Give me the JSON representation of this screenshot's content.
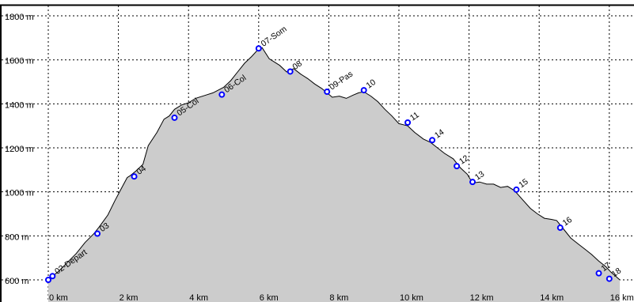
{
  "chart_data": {
    "type": "area",
    "title": "",
    "xlabel": "",
    "ylabel": "",
    "xlim": [
      0,
      16
    ],
    "ylim": [
      600,
      1800
    ],
    "grid": true,
    "grid_style": "dotted",
    "colors": {
      "fill": "#cccccc",
      "line": "#000000",
      "waypoint": "#0000ff",
      "grid": "#000000"
    },
    "x_ticks": [
      "0 km",
      "2 km",
      "4 km",
      "6 km",
      "8 km",
      "10 km",
      "12 km",
      "14 km",
      "16 km"
    ],
    "x_tick_values": [
      0,
      2,
      4,
      6,
      8,
      10,
      12,
      14,
      16
    ],
    "y_ticks": [
      "600 m",
      "800 m",
      "1000 m",
      "1200 m",
      "1400 m",
      "1600 m",
      "1800 m"
    ],
    "y_tick_values": [
      600,
      800,
      1000,
      1200,
      1400,
      1600,
      1800
    ],
    "series": [
      {
        "x": [
          0.0,
          0.05,
          0.15,
          0.3,
          0.55,
          0.8,
          1.05,
          1.3,
          1.45,
          1.7,
          1.9,
          2.1,
          2.25,
          2.35,
          2.5,
          2.7,
          2.85,
          3.1,
          3.3,
          3.45,
          3.6,
          3.8,
          4.0,
          4.2,
          4.5,
          4.7,
          5.0,
          5.2,
          5.4,
          5.6,
          5.8,
          6.0,
          6.1,
          6.3,
          6.6,
          6.8,
          7.0,
          7.2,
          7.4,
          7.6,
          7.8,
          7.95,
          8.1,
          8.3,
          8.5,
          8.7,
          8.85,
          9.0,
          9.2,
          9.4,
          9.6,
          9.8,
          10.0,
          10.25,
          10.45,
          10.7,
          10.9,
          11.1,
          11.3,
          11.55,
          11.75,
          11.95,
          12.1,
          12.3,
          12.5,
          12.7,
          12.9,
          13.1,
          13.3,
          13.55,
          13.75,
          13.95,
          14.15,
          14.35,
          14.5,
          14.7,
          14.9,
          15.1,
          15.3,
          15.5,
          15.7,
          15.9,
          16.05,
          16.3
        ],
        "y": [
          600,
          608,
          620,
          640,
          680,
          720,
          770,
          810,
          840,
          895,
          960,
          1020,
          1065,
          1075,
          1095,
          1125,
          1210,
          1270,
          1330,
          1345,
          1375,
          1395,
          1405,
          1425,
          1440,
          1450,
          1475,
          1505,
          1545,
          1585,
          1615,
          1650,
          1655,
          1605,
          1575,
          1545,
          1560,
          1535,
          1515,
          1490,
          1470,
          1450,
          1430,
          1435,
          1425,
          1440,
          1450,
          1455,
          1435,
          1410,
          1375,
          1345,
          1310,
          1300,
          1270,
          1240,
          1225,
          1200,
          1175,
          1150,
          1110,
          1080,
          1040,
          1045,
          1035,
          1035,
          1020,
          1025,
          1005,
          960,
          925,
          900,
          880,
          875,
          870,
          830,
          790,
          765,
          740,
          715,
          685,
          660,
          635,
          600
        ]
      }
    ],
    "waypoints": [
      {
        "label": "",
        "x": 0.0,
        "y": 600
      },
      {
        "label": "02-Depart",
        "x": 0.12,
        "y": 617
      },
      {
        "label": "03",
        "x": 1.4,
        "y": 810
      },
      {
        "label": "04",
        "x": 2.45,
        "y": 1070
      },
      {
        "label": "05-Col",
        "x": 3.6,
        "y": 1337
      },
      {
        "label": "06-Col",
        "x": 4.95,
        "y": 1442
      },
      {
        "label": "07-Som",
        "x": 6.0,
        "y": 1652
      },
      {
        "label": "08",
        "x": 6.9,
        "y": 1547
      },
      {
        "label": "09-Pas",
        "x": 7.95,
        "y": 1455
      },
      {
        "label": "10",
        "x": 9.0,
        "y": 1462
      },
      {
        "label": "11",
        "x": 10.25,
        "y": 1315
      },
      {
        "label": "14",
        "x": 10.95,
        "y": 1235
      },
      {
        "label": "12",
        "x": 11.65,
        "y": 1117
      },
      {
        "label": "13",
        "x": 12.1,
        "y": 1045
      },
      {
        "label": "15",
        "x": 13.35,
        "y": 1010
      },
      {
        "label": "16",
        "x": 14.6,
        "y": 837
      },
      {
        "label": "17",
        "x": 15.7,
        "y": 630
      },
      {
        "label": "18",
        "x": 16.0,
        "y": 605
      }
    ]
  }
}
